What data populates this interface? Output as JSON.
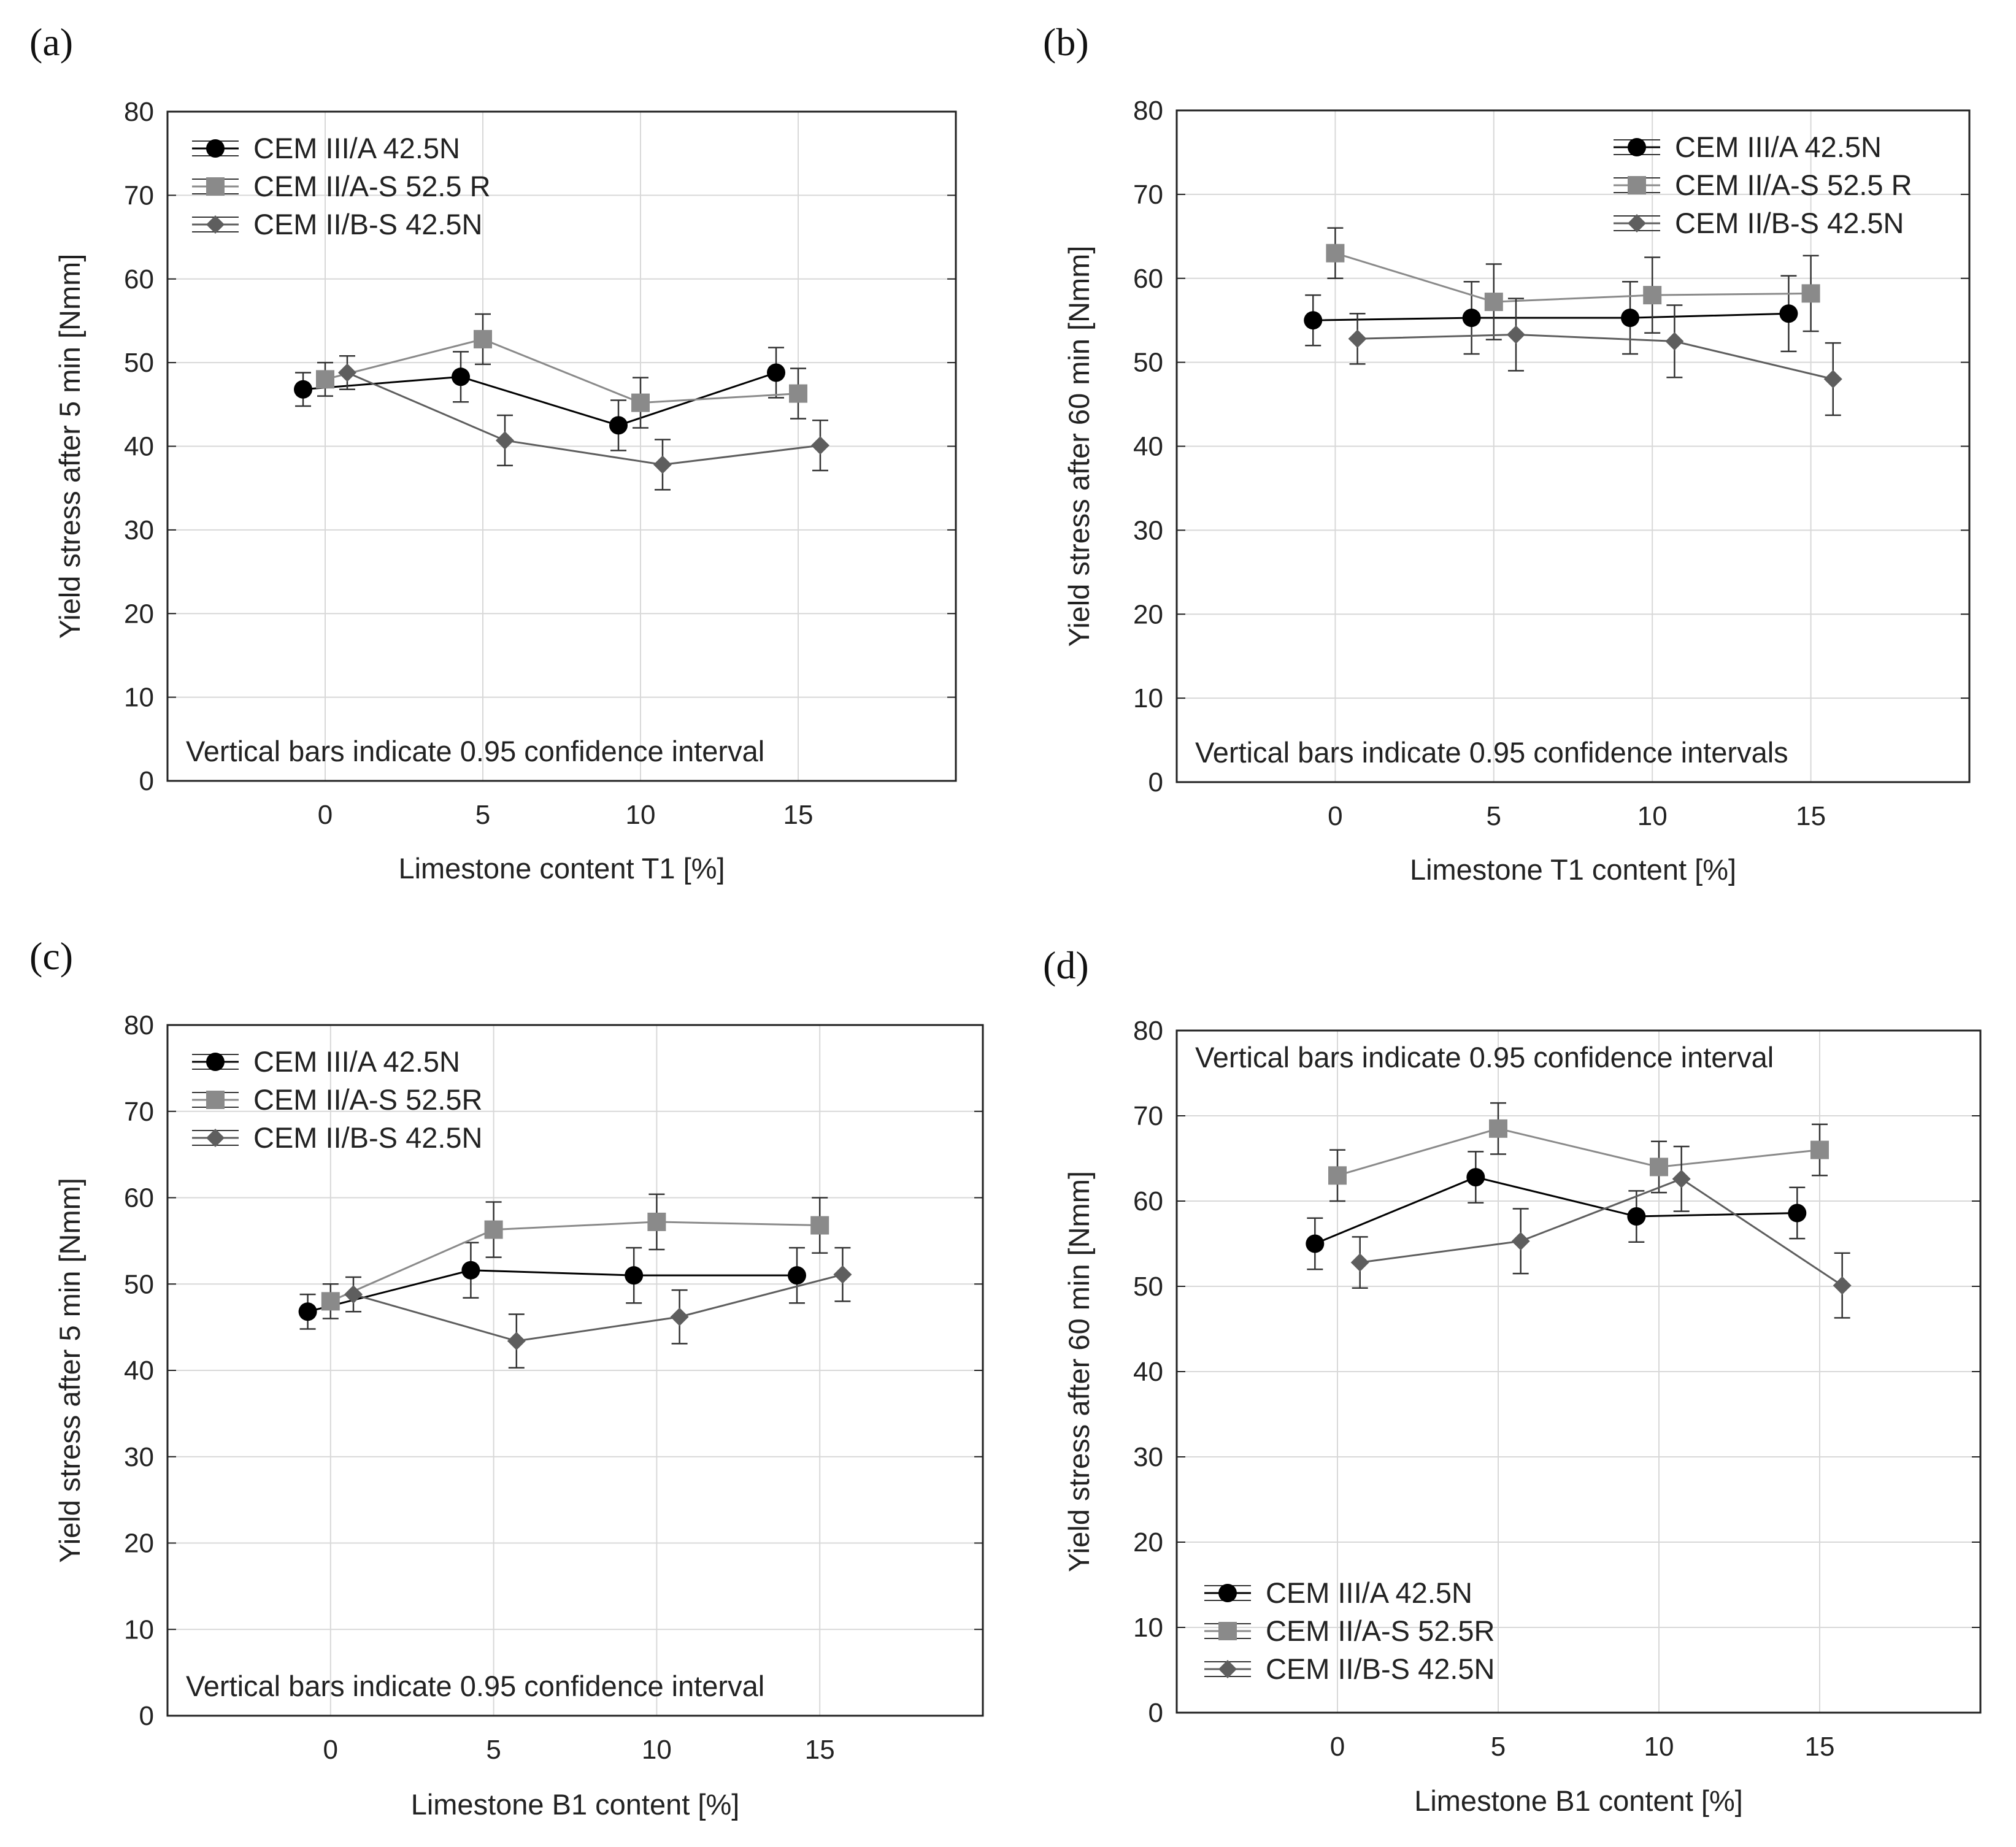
{
  "chart_data": [
    {
      "panel": "(a)",
      "type": "line",
      "xlabel": "Limestone content T1 [%]",
      "ylabel": "Yield stress after 5 min [Nmm]",
      "ylim": [
        0,
        80
      ],
      "yticks": [
        0,
        10,
        20,
        30,
        40,
        50,
        60,
        70,
        80
      ],
      "xlim": [
        -5,
        20
      ],
      "xticks": [
        0,
        5,
        10,
        15
      ],
      "grid": true,
      "legend_position": "top-left",
      "annotation": "Vertical bars indicate 0.95 confidence interval",
      "annotation_position": "bottom",
      "series": [
        {
          "name": "CEM III/A 42.5N",
          "marker": "circle",
          "color": "#000000",
          "x": [
            0,
            5,
            10,
            15
          ],
          "values": [
            46.8,
            48.3,
            42.5,
            48.8
          ],
          "err": [
            2.0,
            3.0,
            3.0,
            3.0
          ]
        },
        {
          "name": "CEM II/A-S 52.5 R",
          "marker": "square",
          "color": "#8a8a8a",
          "x": [
            0,
            5,
            10,
            15
          ],
          "values": [
            48.0,
            52.8,
            45.2,
            46.3
          ],
          "err": [
            2.0,
            3.0,
            3.0,
            3.0
          ]
        },
        {
          "name": "CEM II/B-S 42.5N",
          "marker": "diamond",
          "color": "#5e5e5e",
          "x": [
            0,
            5,
            10,
            15
          ],
          "values": [
            48.8,
            40.7,
            37.8,
            40.1
          ],
          "err": [
            2.0,
            3.0,
            3.0,
            3.0
          ]
        }
      ]
    },
    {
      "panel": "(b)",
      "type": "line",
      "xlabel": "Limestone T1 content [%]",
      "ylabel": "Yield stress after 60 min [Nmm]",
      "ylim": [
        0,
        80
      ],
      "yticks": [
        0,
        10,
        20,
        30,
        40,
        50,
        60,
        70,
        80
      ],
      "xlim": [
        -5,
        20
      ],
      "xticks": [
        0,
        5,
        10,
        15
      ],
      "grid": true,
      "legend_position": "top-right",
      "annotation": "Vertical bars indicate 0.95 confidence intervals",
      "annotation_position": "bottom",
      "series": [
        {
          "name": "CEM III/A 42.5N",
          "marker": "circle",
          "color": "#000000",
          "x": [
            0,
            5,
            10,
            15
          ],
          "values": [
            55.0,
            55.3,
            55.3,
            55.8
          ],
          "err": [
            3.0,
            4.3,
            4.3,
            4.5
          ]
        },
        {
          "name": "CEM II/A-S 52.5 R",
          "marker": "square",
          "color": "#8a8a8a",
          "x": [
            0,
            5,
            10,
            15
          ],
          "values": [
            63.0,
            57.2,
            58.0,
            58.2
          ],
          "err": [
            3.0,
            4.5,
            4.5,
            4.5
          ]
        },
        {
          "name": "CEM II/B-S 42.5N",
          "marker": "diamond",
          "color": "#5e5e5e",
          "x": [
            0,
            5,
            10,
            15
          ],
          "values": [
            52.8,
            53.3,
            52.5,
            48.0
          ],
          "err": [
            3.0,
            4.3,
            4.3,
            4.3
          ]
        }
      ]
    },
    {
      "panel": "(c)",
      "type": "line",
      "xlabel": "Limestone B1 content [%]",
      "ylabel": "Yield stress after 5 min [Nmm]",
      "ylim": [
        0,
        80
      ],
      "yticks": [
        0,
        10,
        20,
        30,
        40,
        50,
        60,
        70,
        80
      ],
      "xlim": [
        -5,
        20
      ],
      "xticks": [
        0,
        5,
        10,
        15
      ],
      "grid": true,
      "legend_position": "top-left",
      "annotation": "Vertical bars indicate 0.95 confidence interval",
      "annotation_position": "bottom",
      "series": [
        {
          "name": "CEM III/A 42.5N",
          "marker": "circle",
          "color": "#000000",
          "x": [
            0,
            5,
            10,
            15
          ],
          "values": [
            46.8,
            51.6,
            51.0,
            51.0
          ],
          "err": [
            2.0,
            3.2,
            3.2,
            3.2
          ]
        },
        {
          "name": "CEM II/A-S 52.5R",
          "marker": "square",
          "color": "#8a8a8a",
          "x": [
            0,
            5,
            10,
            15
          ],
          "values": [
            48.0,
            56.3,
            57.2,
            56.8
          ],
          "err": [
            2.0,
            3.2,
            3.2,
            3.2
          ]
        },
        {
          "name": "CEM II/B-S 42.5N",
          "marker": "diamond",
          "color": "#5e5e5e",
          "x": [
            0,
            5,
            10,
            15
          ],
          "values": [
            48.8,
            43.4,
            46.2,
            51.1
          ],
          "err": [
            2.0,
            3.1,
            3.1,
            3.1
          ]
        }
      ]
    },
    {
      "panel": "(d)",
      "type": "line",
      "xlabel": "Limestone B1 content [%]",
      "ylabel": "Yield stress after 60 min [Nmm]",
      "ylim": [
        0,
        80
      ],
      "yticks": [
        0,
        10,
        20,
        30,
        40,
        50,
        60,
        70,
        80
      ],
      "xlim": [
        -5,
        20
      ],
      "xticks": [
        0,
        5,
        10,
        15
      ],
      "grid": true,
      "legend_position": "bottom-left",
      "annotation": "Vertical bars indicate 0.95 confidence interval",
      "annotation_position": "top",
      "series": [
        {
          "name": "CEM III/A 42.5N",
          "marker": "circle",
          "color": "#000000",
          "x": [
            0,
            5,
            10,
            15
          ],
          "values": [
            55.0,
            62.8,
            58.2,
            58.6
          ],
          "err": [
            3.0,
            3.0,
            3.0,
            3.0
          ]
        },
        {
          "name": "CEM II/A-S 52.5R",
          "marker": "square",
          "color": "#8a8a8a",
          "x": [
            0,
            5,
            10,
            15
          ],
          "values": [
            63.0,
            68.5,
            64.0,
            66.0
          ],
          "err": [
            3.0,
            3.0,
            3.0,
            3.0
          ]
        },
        {
          "name": "CEM II/B-S 42.5N",
          "marker": "diamond",
          "color": "#5e5e5e",
          "x": [
            0,
            5,
            10,
            15
          ],
          "values": [
            52.8,
            55.3,
            62.6,
            50.1
          ],
          "err": [
            3.0,
            3.8,
            3.8,
            3.8
          ]
        }
      ]
    }
  ]
}
